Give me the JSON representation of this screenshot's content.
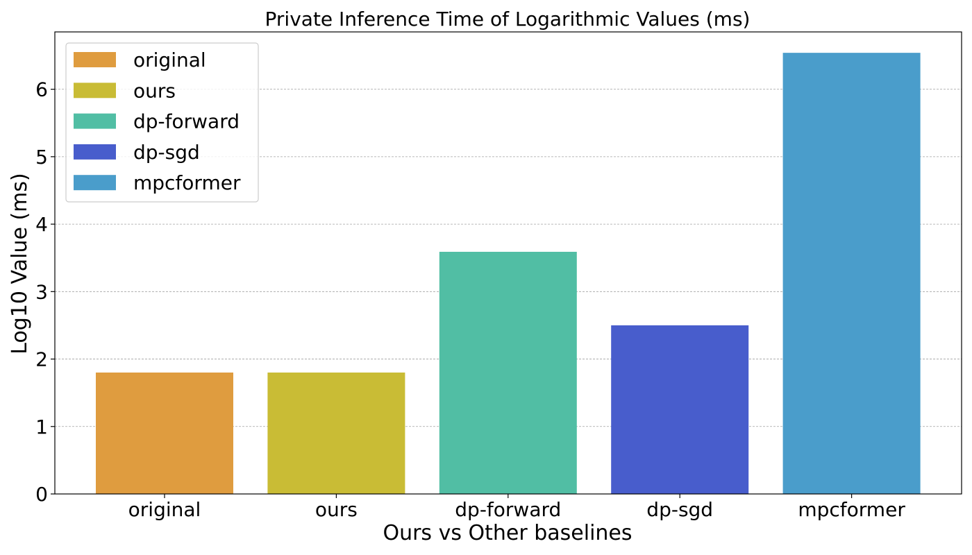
{
  "chart_data": {
    "type": "bar",
    "title": "Private Inference Time of Logarithmic Values (ms)",
    "xlabel": "Ours vs Other baselines",
    "ylabel": "Log10 Value (ms)",
    "categories": [
      "original",
      "ours",
      "dp-forward",
      "dp-sgd",
      "mpcformer"
    ],
    "values": [
      1.8,
      1.8,
      3.59,
      2.5,
      6.54
    ],
    "colors": [
      "#DF9C3F",
      "#C9BC35",
      "#51BEA4",
      "#485DCC",
      "#4A9DCB"
    ],
    "ylim": [
      0,
      6.85
    ],
    "yticks": [
      0,
      1,
      2,
      3,
      4,
      5,
      6
    ],
    "grid": "y, dashed",
    "legend": {
      "placement": "top-left",
      "entries": [
        "original",
        "ours",
        "dp-forward",
        "dp-sgd",
        "mpcformer"
      ]
    }
  }
}
